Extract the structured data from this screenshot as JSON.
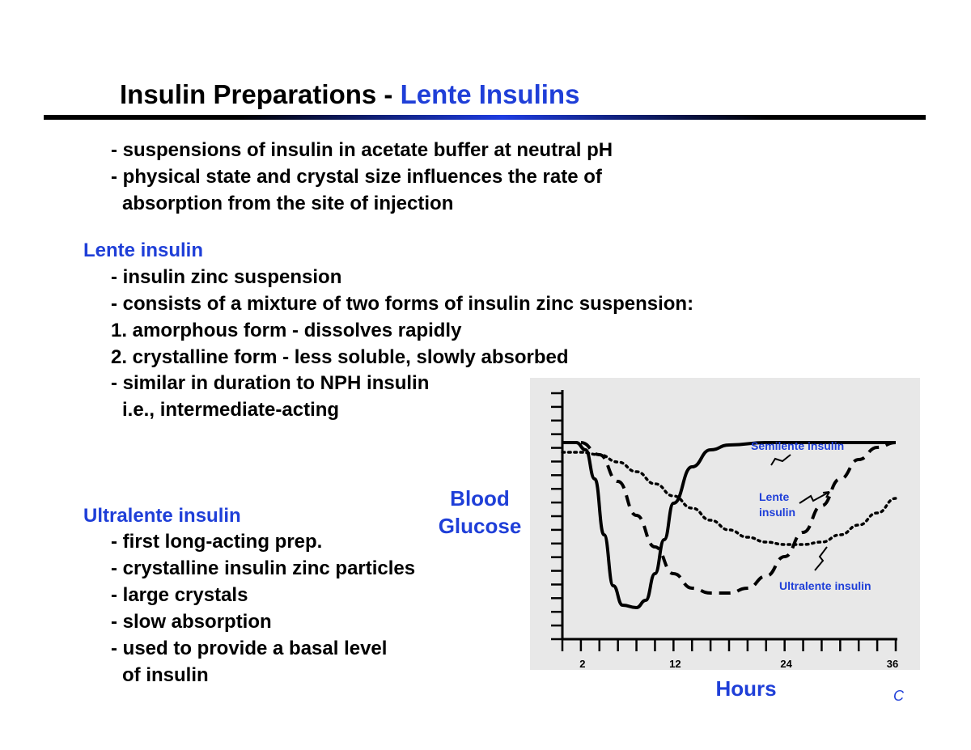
{
  "title": {
    "prefix": "Insulin Preparations - ",
    "accent": "Lente Insulins"
  },
  "intro": [
    "- suspensions of insulin in acetate buffer at neutral pH",
    "- physical state and crystal size influences the rate of",
    "absorption from the site of injection"
  ],
  "lente": {
    "heading": "Lente insulin",
    "lines": [
      "- insulin zinc suspension",
      "- consists of a mixture of two forms of insulin zinc suspension:",
      "1. amorphous form - dissolves rapidly",
      "2. crystalline form - less soluble, slowly absorbed",
      "- similar in duration to NPH insulin",
      "i.e., intermediate-acting"
    ]
  },
  "ultralente": {
    "heading": "Ultralente insulin",
    "lines": [
      "- first long-acting prep.",
      "- crystalline insulin zinc particles",
      "- large crystals",
      "- slow absorption",
      "- used to provide a basal level",
      "of insulin"
    ]
  },
  "chart_labels": {
    "y_line1": "Blood",
    "y_line2": "Glucose",
    "x": "Hours"
  },
  "footer_mark": "C",
  "colors": {
    "accent": "#1f3fd8",
    "text": "#000000",
    "chart_bg": "#e8e8e8"
  },
  "chart_data": {
    "type": "line",
    "title": "",
    "xlabel": "Hours",
    "ylabel": "Blood Glucose",
    "x_ticks": [
      2,
      12,
      24,
      36
    ],
    "xlim": [
      0,
      36
    ],
    "ylim": [
      0,
      10
    ],
    "grid": false,
    "series": [
      {
        "name": "Semilente insulin",
        "style": "solid",
        "x": [
          0,
          1.5,
          2.5,
          3.5,
          4.5,
          5.5,
          6.5,
          8,
          9,
          10,
          11,
          12,
          14,
          16,
          18,
          22,
          26,
          30,
          34,
          36
        ],
        "y": [
          8,
          8,
          7.7,
          6.5,
          4.2,
          2.1,
          1.3,
          1.2,
          1.5,
          2.6,
          4.0,
          5.5,
          7.0,
          7.7,
          7.9,
          8,
          8,
          8,
          8,
          8
        ]
      },
      {
        "name": "Lente insulin",
        "style": "dashed",
        "x": [
          0,
          2,
          4,
          6,
          8,
          10,
          12,
          14,
          16,
          18,
          20,
          22,
          24,
          26,
          28,
          30,
          32,
          34,
          36
        ],
        "y": [
          8,
          8,
          7.5,
          6.4,
          5.0,
          3.7,
          2.6,
          2.0,
          1.8,
          1.8,
          2.0,
          2.5,
          3.3,
          4.3,
          5.4,
          6.5,
          7.3,
          7.8,
          8
        ]
      },
      {
        "name": "Ultralente insulin",
        "style": "dotted",
        "x": [
          0,
          2,
          4,
          6,
          8,
          10,
          12,
          14,
          16,
          18,
          20,
          22,
          24,
          26,
          28,
          30,
          32,
          34,
          36
        ],
        "y": [
          7.6,
          7.6,
          7.5,
          7.2,
          6.8,
          6.3,
          5.8,
          5.3,
          4.8,
          4.4,
          4.1,
          3.9,
          3.8,
          3.8,
          3.9,
          4.2,
          4.6,
          5.1,
          5.7
        ]
      }
    ]
  }
}
